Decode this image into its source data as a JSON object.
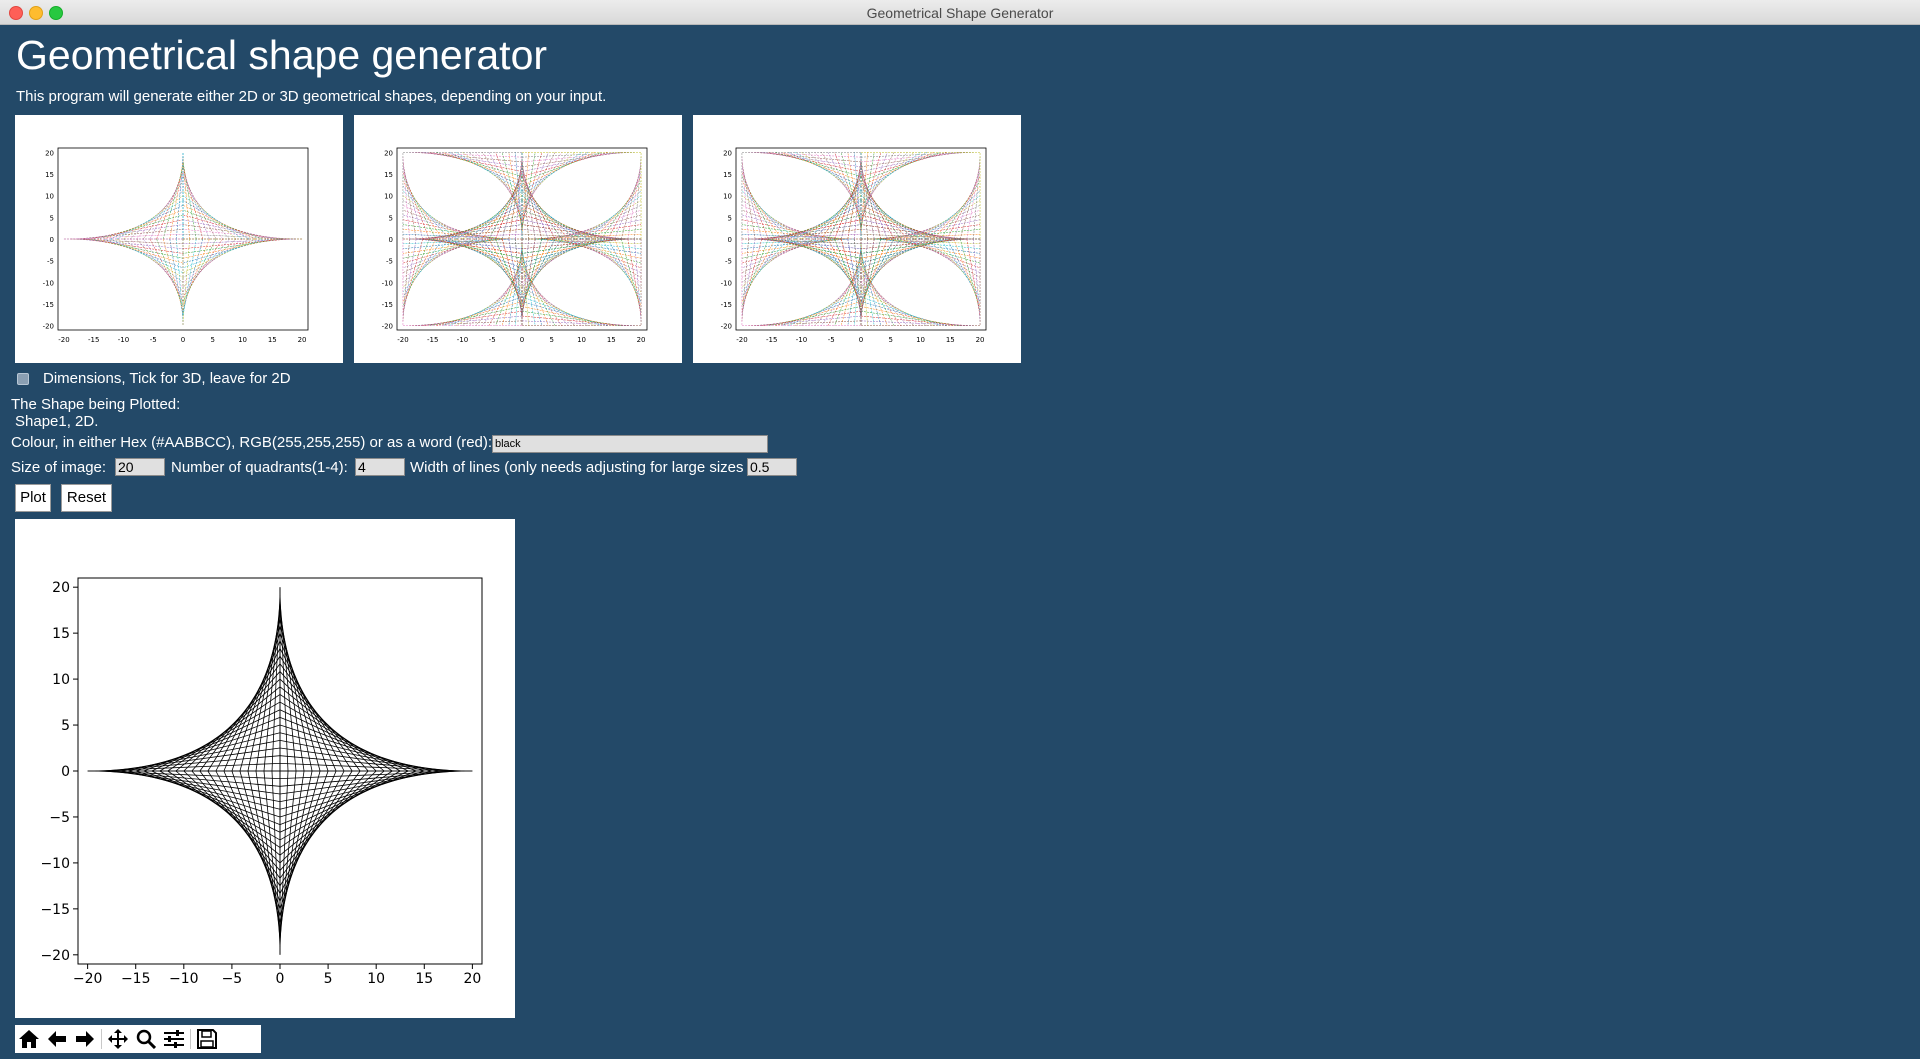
{
  "window": {
    "title": "Geometrical Shape Generator"
  },
  "header": {
    "title": "Geometrical shape generator",
    "subtitle": "This program will generate either 2D or 3D geometrical shapes, depending on your input."
  },
  "previews": [
    {
      "ticks_x": [
        "-20",
        "-15",
        "-10",
        "-5",
        "0",
        "5",
        "10",
        "15",
        "20"
      ],
      "ticks_y": [
        "20",
        "15",
        "10",
        "5",
        "0",
        "-5",
        "-10",
        "-15",
        "-20"
      ]
    },
    {
      "ticks_x": [
        "-20",
        "-15",
        "-10",
        "-5",
        "0",
        "5",
        "10",
        "15",
        "20"
      ],
      "ticks_y": [
        "20",
        "15",
        "10",
        "5",
        "0",
        "-5",
        "-10",
        "-15",
        "-20"
      ]
    },
    {
      "ticks_x": [
        "-20",
        "-15",
        "-10",
        "-5",
        "0",
        "5",
        "10",
        "15",
        "20"
      ],
      "ticks_y": [
        "20",
        "15",
        "10",
        "5",
        "0",
        "-5",
        "-10",
        "-15",
        "-20"
      ]
    }
  ],
  "form": {
    "dimension_checkbox_label": "Dimensions, Tick for 3D, leave for 2D",
    "dimension_checked": false,
    "shape_heading": "The Shape being Plotted:",
    "shape_value": "Shape1, 2D.",
    "colour_label": "Colour, in either Hex (#AABBCC), RGB(255,255,255) or as a word (red):",
    "colour_value": "black",
    "size_label": "Size of image:",
    "size_value": "20",
    "quadrants_label": "Number of quadrants(1-4):",
    "quadrants_value": "4",
    "width_label": "Width of lines (only needs adjusting for large sizes",
    "width_value": "0.5",
    "plot_button": "Plot",
    "reset_button": "Reset"
  },
  "chart_data": {
    "type": "line",
    "title": "",
    "xlabel": "",
    "ylabel": "",
    "xlim": [
      -21,
      21
    ],
    "ylim": [
      -21,
      21
    ],
    "x_ticks": [
      -20,
      -15,
      -10,
      -5,
      0,
      5,
      10,
      15,
      20
    ],
    "y_ticks": [
      -20,
      -15,
      -10,
      -5,
      0,
      5,
      10,
      15,
      20
    ],
    "x_tick_labels": [
      "−20",
      "−15",
      "−10",
      "−5",
      "0",
      "5",
      "10",
      "15",
      "20"
    ],
    "y_tick_labels": [
      "20",
      "15",
      "10",
      "5",
      "0",
      "−5",
      "−10",
      "−15",
      "−20"
    ],
    "shape": "string-art astroid",
    "size": 20,
    "quadrants": 4,
    "line_color": "#000000",
    "line_width": 0.5,
    "grid": false,
    "legend": "none"
  },
  "toolbar": {
    "icons": [
      "home-icon",
      "back-icon",
      "forward-icon",
      "pan-icon",
      "zoom-icon",
      "configure-subplots-icon",
      "save-icon"
    ]
  },
  "colors": {
    "background": "#234968",
    "text": "#ffffff",
    "plot_line": "#000000"
  }
}
